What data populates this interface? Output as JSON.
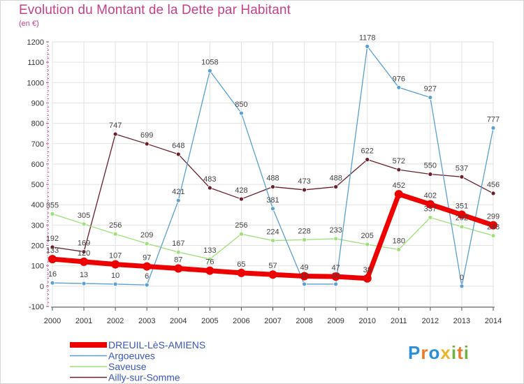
{
  "title": "Evolution du Montant de la Dette par Habitant",
  "subtitle": "(en €)",
  "logo": {
    "letters": [
      "P",
      "r",
      "o",
      "x",
      "i",
      "t",
      "i"
    ],
    "colors": [
      "#2a8fd6",
      "#e87b2a",
      "#2a8fd6",
      "#e8b82a",
      "#6db33f",
      "#e87b2a",
      "#6db33f"
    ]
  },
  "chart_data": {
    "type": "line",
    "x": [
      "2000",
      "2001",
      "2002",
      "2003",
      "2004",
      "2005",
      "2006",
      "2007",
      "2008",
      "2009",
      "2010",
      "2011",
      "2012",
      "2013",
      "2014"
    ],
    "ylim": [
      -100,
      1200
    ],
    "yticks": [
      -100,
      0,
      100,
      200,
      300,
      400,
      500,
      600,
      700,
      800,
      900,
      1000,
      1100,
      1200
    ],
    "grid": true,
    "legend_position": "bottom-left",
    "series": [
      {
        "name": "Ailly-sur-Somme",
        "color": "#6b1f2a",
        "values": [
          192,
          169,
          747,
          699,
          648,
          483,
          428,
          488,
          473,
          488,
          622,
          572,
          550,
          537,
          456
        ],
        "labels": [
          "192",
          "169",
          "747",
          "699",
          "648",
          "483",
          "428",
          "488",
          "473",
          "488",
          "622",
          "572",
          "550",
          "537",
          "456"
        ]
      },
      {
        "name": "Saveuse",
        "color": "#9ee07a",
        "values": [
          355,
          305,
          256,
          209,
          167,
          133,
          256,
          224,
          228,
          233,
          205,
          180,
          337,
          292,
          248
        ],
        "labels": [
          "355",
          "305",
          "256",
          "209",
          "167",
          "133",
          "256",
          "224",
          "228",
          "233",
          "205",
          "180",
          "337",
          "292",
          "248"
        ]
      },
      {
        "name": "Argoeuves",
        "color": "#5aa0d0",
        "values": [
          16,
          13,
          10,
          6,
          421,
          1058,
          850,
          381,
          10,
          10,
          1178,
          976,
          927,
          0,
          777
        ],
        "labels": [
          "16",
          "13",
          "10",
          "6",
          "421",
          "1058",
          "850",
          "381",
          "10",
          "10",
          "1178",
          "976",
          "927",
          "0",
          "777"
        ]
      },
      {
        "name": "DREUIL-LèS-AMIENS",
        "color": "#ee0000",
        "values": [
          133,
          120,
          107,
          97,
          87,
          76,
          65,
          57,
          49,
          47,
          38,
          452,
          402,
          351,
          299
        ],
        "labels": [
          "133",
          "120",
          "107",
          "97",
          "87",
          "76",
          "65",
          "57",
          "49",
          "47",
          "38",
          "452",
          "402",
          "351",
          "299"
        ]
      }
    ],
    "legend": [
      "DREUIL-LèS-AMIENS",
      "Argoeuves",
      "Saveuse",
      "Ailly-sur-Somme"
    ]
  }
}
